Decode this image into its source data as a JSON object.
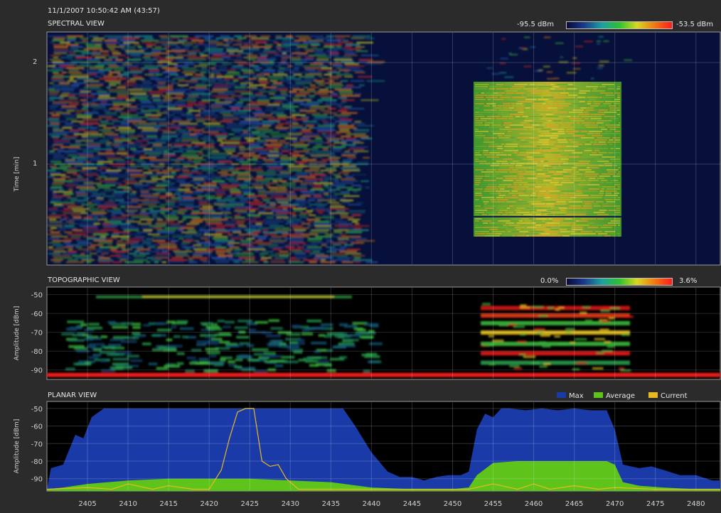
{
  "timestamp": "11/1/2007 10:50:42 AM (43:57)",
  "spectral": {
    "title": "SPECTRAL VIEW",
    "ylabel": "Time [min]",
    "yticks": [
      "2",
      "1"
    ],
    "scale_min": "-95.5 dBm",
    "scale_max": "-53.5 dBm"
  },
  "topographic": {
    "title": "TOPOGRAPHIC VIEW",
    "ylabel": "Amplitude [dBm]",
    "yticks": [
      "-50",
      "-60",
      "-70",
      "-80",
      "-90"
    ],
    "scale_min": "0.0%",
    "scale_max": "3.6%"
  },
  "planar": {
    "title": "PLANAR VIEW",
    "ylabel": "Amplitude [dBm]",
    "yticks": [
      "-50",
      "-60",
      "-70",
      "-80",
      "-90"
    ],
    "legend": [
      "Max",
      "Average",
      "Current"
    ]
  },
  "colors": {
    "max": "#1a3aa8",
    "average": "#5ec41c",
    "current": "#e8b820",
    "plot_bg": "#000000",
    "spectral_bg": "#06103a"
  },
  "chart_data": [
    {
      "type": "heatmap",
      "title": "SPECTRAL VIEW",
      "ylabel": "Time [min]",
      "yticks": [
        2,
        1
      ],
      "color_scale": [
        "-95.5 dBm",
        "-53.5 dBm"
      ],
      "xlim": [
        2400,
        2483
      ]
    },
    {
      "type": "heatmap",
      "title": "TOPOGRAPHIC VIEW",
      "ylabel": "Amplitude [dBm]",
      "yticks": [
        -50,
        -60,
        -70,
        -80,
        -90
      ],
      "color_scale": [
        "0.0%",
        "3.6%"
      ],
      "xlim": [
        2400,
        2483
      ]
    },
    {
      "type": "area",
      "title": "PLANAR VIEW",
      "ylabel": "Amplitude [dBm]",
      "xlim": [
        2400,
        2483
      ],
      "ylim": [
        -97,
        -46
      ],
      "x_ticks": [
        2405,
        2410,
        2415,
        2420,
        2425,
        2430,
        2435,
        2440,
        2445,
        2450,
        2455,
        2460,
        2465,
        2470,
        2475,
        2480
      ],
      "y_ticks": [
        -50,
        -60,
        -70,
        -80,
        -90
      ],
      "series": [
        {
          "name": "Max",
          "x": [
            2400,
            2400.5,
            2402,
            2403.5,
            2404.5,
            2405.5,
            2407,
            2408.5,
            2410,
            2415,
            2420,
            2425,
            2430,
            2435,
            2436.5,
            2438,
            2440,
            2442,
            2443.5,
            2445,
            2446.5,
            2448,
            2449.5,
            2451,
            2452,
            2453,
            2454,
            2455,
            2456,
            2457,
            2459,
            2461,
            2463,
            2465,
            2467,
            2469,
            2470,
            2471,
            2473,
            2474.5,
            2476,
            2478,
            2480,
            2482,
            2483
          ],
          "y": [
            -96,
            -84,
            -82,
            -65,
            -67,
            -55,
            -50,
            -50,
            -50,
            -50,
            -50,
            -50,
            -50,
            -50,
            -50,
            -60,
            -75,
            -86,
            -89,
            -89,
            -91,
            -89,
            -88,
            -88,
            -86,
            -62,
            -53,
            -55,
            -50,
            -50,
            -51,
            -50,
            -51,
            -50,
            -51,
            -51,
            -62,
            -82,
            -84,
            -83,
            -85,
            -88,
            -88,
            -91,
            -91
          ]
        },
        {
          "name": "Average",
          "x": [
            2400,
            2402,
            2405,
            2410,
            2415,
            2420,
            2425,
            2430,
            2435,
            2440,
            2445,
            2450,
            2452,
            2453,
            2455,
            2458,
            2462,
            2466,
            2469,
            2470,
            2471,
            2473,
            2476,
            2480,
            2483
          ],
          "y": [
            -96,
            -95,
            -93,
            -91,
            -90,
            -90,
            -90,
            -91,
            -92,
            -95,
            -96,
            -96,
            -95,
            -88,
            -81,
            -80,
            -80,
            -80,
            -80,
            -82,
            -92,
            -94,
            -95,
            -96,
            -96
          ]
        },
        {
          "name": "Current",
          "x": [
            2400,
            2405,
            2408,
            2410,
            2413,
            2415,
            2418,
            2420,
            2421.5,
            2422.5,
            2423.5,
            2424.5,
            2425.5,
            2426.5,
            2427.5,
            2428.5,
            2429.5,
            2431,
            2432,
            2435,
            2440,
            2445,
            2450,
            2452,
            2455,
            2458,
            2460,
            2462,
            2465,
            2468,
            2470,
            2475,
            2480,
            2483
          ],
          "y": [
            -96,
            -95,
            -96,
            -93,
            -96,
            -94,
            -96,
            -96,
            -85,
            -67,
            -52,
            -50,
            -50,
            -80,
            -83,
            -82,
            -90,
            -96,
            -96,
            -96,
            -96,
            -96,
            -96,
            -96,
            -93,
            -96,
            -93,
            -96,
            -94,
            -96,
            -95,
            -96,
            -96,
            -96
          ]
        }
      ]
    }
  ]
}
